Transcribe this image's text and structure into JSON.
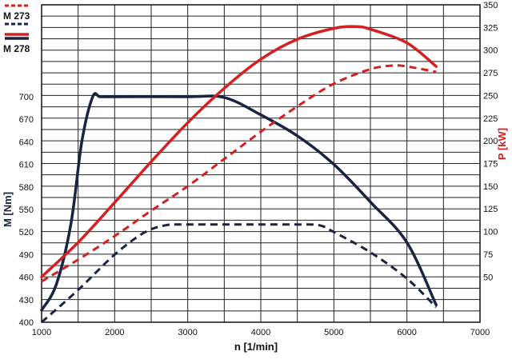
{
  "chart_data": {
    "type": "line",
    "xlabel": "n [1/min]",
    "ylabel_left": "M [Nm]",
    "ylabel_right": "P [kW]",
    "xlim": [
      1000,
      7000
    ],
    "x_ticks": [
      1000,
      2000,
      3000,
      4000,
      5000,
      6000,
      7000
    ],
    "ylim_left": [
      400,
      700
    ],
    "y_ticks_left": [
      400,
      430,
      460,
      490,
      520,
      550,
      580,
      610,
      640,
      670,
      700
    ],
    "ylim_right": [
      0,
      350
    ],
    "y_ticks_right": [
      50,
      75,
      100,
      125,
      150,
      175,
      200,
      225,
      250,
      275,
      300,
      325,
      350
    ],
    "grid": true,
    "legend": [
      {
        "label": "M 273",
        "style": "dashed"
      },
      {
        "label": "M 278",
        "style": "solid"
      }
    ],
    "colors": {
      "torque": "#1a2442",
      "power": "#d42020"
    },
    "series": [
      {
        "engine": "M 273",
        "quantity": "torque",
        "axis": "left",
        "style": "dashed",
        "x": [
          1000,
          1500,
          2000,
          2400,
          2700,
          3000,
          3500,
          4000,
          4500,
          4800,
          5000,
          5500,
          6000,
          6400
        ],
        "y": [
          400,
          443,
          490,
          519,
          529,
          530,
          530,
          530,
          530,
          529,
          520,
          493,
          458,
          420
        ]
      },
      {
        "engine": "M 278",
        "quantity": "torque",
        "axis": "left",
        "style": "solid",
        "x": [
          1000,
          1200,
          1400,
          1550,
          1700,
          1800,
          2000,
          3000,
          3500,
          4000,
          4500,
          5000,
          5500,
          6000,
          6400
        ],
        "y": [
          416,
          450,
          530,
          640,
          700,
          700,
          700,
          700,
          699,
          676,
          648,
          610,
          560,
          506,
          423
        ]
      },
      {
        "engine": "M 273",
        "quantity": "power",
        "axis": "right",
        "style": "dashed",
        "x": [
          1000,
          1500,
          2000,
          2500,
          3000,
          3500,
          4000,
          4500,
          5000,
          5500,
          5800,
          6000,
          6400
        ],
        "y": [
          45,
          69,
          95,
          123,
          150,
          180,
          210,
          238,
          263,
          279,
          283,
          282,
          276
        ]
      },
      {
        "engine": "M 278",
        "quantity": "power",
        "axis": "right",
        "style": "solid",
        "x": [
          1000,
          1500,
          2000,
          2500,
          3000,
          3500,
          4000,
          4500,
          5000,
          5300,
          5500,
          6000,
          6400
        ],
        "y": [
          50,
          88,
          132,
          177,
          220,
          258,
          290,
          312,
          324,
          326,
          323,
          308,
          282
        ]
      }
    ]
  }
}
